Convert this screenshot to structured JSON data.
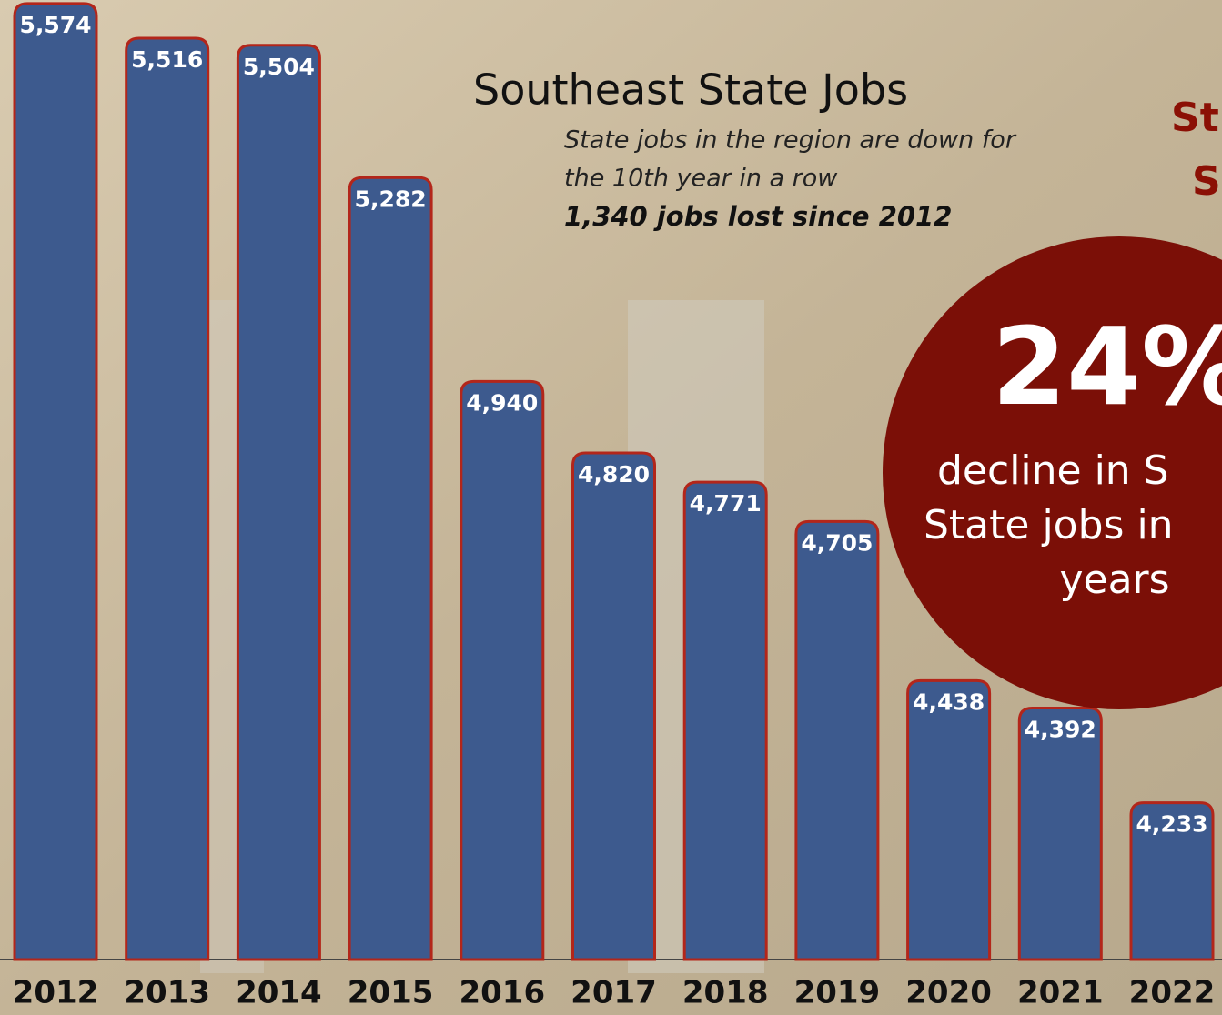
{
  "chart_data": {
    "type": "bar",
    "title": "Southeast State Jobs",
    "subtitle": [
      "State jobs in the region are down for",
      "the 10th year in a row"
    ],
    "highlight": "1,340 jobs lost since 2012",
    "side_heading": [
      "St",
      "S"
    ],
    "callout": {
      "big": "24%",
      "lines": [
        "decline in S",
        "State jobs in",
        "years"
      ]
    },
    "categories": [
      "2012",
      "2013",
      "2014",
      "2015",
      "2016",
      "2017",
      "2018",
      "2019",
      "2020",
      "2021",
      "2022"
    ],
    "values": [
      5574,
      5516,
      5504,
      5282,
      4940,
      4820,
      4771,
      4705,
      4438,
      4392,
      4233
    ],
    "value_labels": [
      "5,574",
      "5,516",
      "5,504",
      "5,282",
      "4,940",
      "4,820",
      "4,771",
      "4,705",
      "4,438",
      "4,392",
      "4,233"
    ],
    "color": "#3d5a8e",
    "ylim": [
      3970,
      5580
    ]
  }
}
